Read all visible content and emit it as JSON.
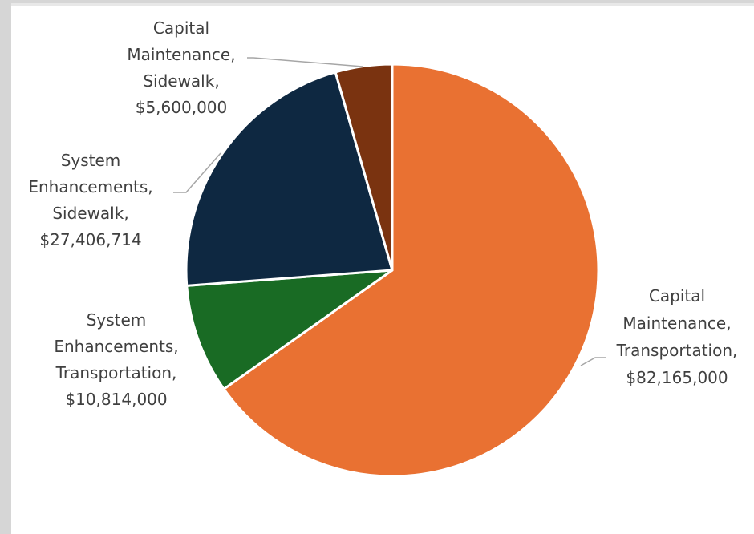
{
  "chart_data": {
    "type": "pie",
    "categories": [
      "Capital Maintenance, Transportation",
      "System Enhancements, Transportation",
      "System Enhancements, Sidewalk",
      "Capital Maintenance, Sidewalk"
    ],
    "values": [
      82165000,
      10814000,
      27406714,
      5600000
    ],
    "colors": [
      "#e97132",
      "#196b24",
      "#0e2841",
      "#7a3310"
    ],
    "data_labels": [
      [
        "Capital",
        "Maintenance,",
        "Transportation,",
        "$82,165,000"
      ],
      [
        "System",
        "Enhancements,",
        "Transportation,",
        "$10,814,000"
      ],
      [
        "System",
        "Enhancements,",
        "Sidewalk,",
        "$27,406,714"
      ],
      [
        "Capital",
        "Maintenance,",
        "Sidewalk,",
        "$5,600,000"
      ]
    ]
  }
}
